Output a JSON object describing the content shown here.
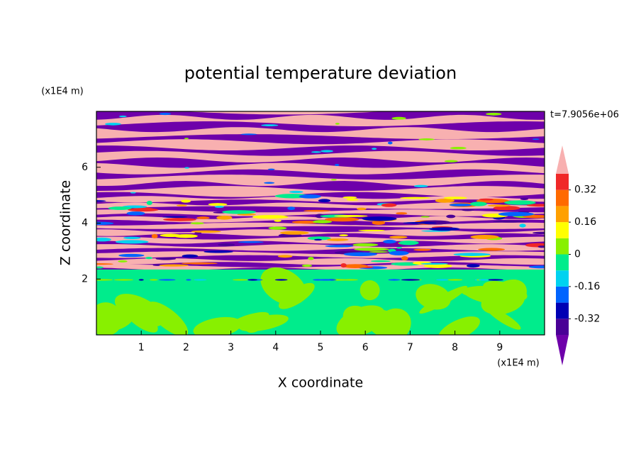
{
  "chart_data": {
    "type": "contour",
    "title": "potential temperature deviation",
    "x_label": "X coordinate",
    "y_label": "Z coordinate",
    "x_unit": "(x1E4 m)",
    "y_unit": "(x1E4 m)",
    "time_label": "t=7.9056e+06",
    "xlim": [
      0,
      10
    ],
    "xticks": [
      1,
      2,
      3,
      4,
      5,
      6,
      7,
      8,
      9
    ],
    "ylim": [
      0,
      8
    ],
    "yticks": [
      2,
      4,
      6
    ],
    "colorbar": {
      "lim": [
        -0.4,
        0.4
      ],
      "ticks": [
        0.32,
        0.16,
        0,
        -0.16,
        -0.32
      ],
      "colors": [
        "#6e00aa",
        "#4a0096",
        "#0000b4",
        "#0064ff",
        "#00d2f0",
        "#00ec8c",
        "#88f000",
        "#ffff00",
        "#ffa000",
        "#ff6a00",
        "#f02828",
        "#f8b0b0"
      ]
    }
  }
}
